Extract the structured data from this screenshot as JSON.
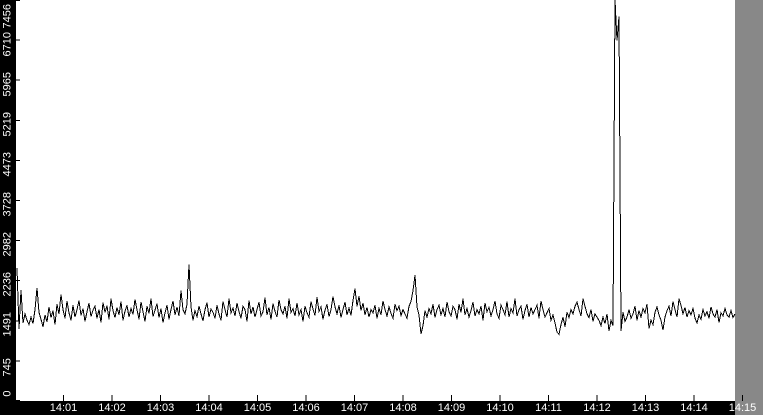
{
  "window": {
    "background_color": "#ffffff",
    "axis_bar_color": "#000000",
    "axis_text_color": "#ffffff"
  },
  "chart_data": {
    "type": "line",
    "title": "",
    "xlabel": "",
    "ylabel": "",
    "grid": false,
    "legend": false,
    "line_color": "#000000",
    "ylim": [
      0,
      7456
    ],
    "y_ticks": [
      7456,
      6710,
      5965,
      5219,
      4473,
      3728,
      2982,
      2236,
      1491,
      745,
      0
    ],
    "x_ticks": [
      "14:01",
      "14:02",
      "14:03",
      "14:04",
      "14:05",
      "14:06",
      "14:07",
      "14:08",
      "14:09",
      "14:10",
      "14:11",
      "14:12",
      "14:13",
      "14:14",
      "14:15"
    ],
    "x_start_time": "14:00:03",
    "x_end_time": "14:14:53",
    "sample_interval_s": 2.5,
    "baseline_mean": 1670,
    "spikes": [
      {
        "time": "14:03:36",
        "value": 2540
      },
      {
        "time": "14:08:16",
        "value": 2340
      },
      {
        "time": "14:12:25",
        "value": 7456
      }
    ],
    "values": [
      2470,
      1340,
      2060,
      1450,
      1620,
      1500,
      1420,
      1560,
      1440,
      1700,
      2100,
      1650,
      1520,
      1380,
      1600,
      1470,
      1750,
      1550,
      1680,
      1420,
      1800,
      1620,
      1980,
      1700,
      1540,
      1860,
      1640,
      1500,
      1780,
      1560,
      1700,
      1870,
      1590,
      1720,
      1480,
      1660,
      1820,
      1570,
      1690,
      1760,
      1540,
      1700,
      1460,
      1830,
      1650,
      1770,
      1520,
      1900,
      1680,
      1550,
      1740,
      1600,
      1850,
      1500,
      1670,
      1780,
      1560,
      1720,
      1610,
      1890,
      1700,
      1520,
      1840,
      1660,
      1480,
      1760,
      1630,
      1900,
      1570,
      1690,
      1810,
      1550,
      1720,
      1460,
      1640,
      1780,
      1520,
      1700,
      1860,
      1600,
      1750,
      1580,
      2050,
      1700,
      1620,
      1800,
      2540,
      1750,
      1500,
      1680,
      1570,
      1760,
      1620,
      1490,
      1700,
      1830,
      1560,
      1710,
      1650,
      1540,
      1780,
      1620,
      1500,
      1850,
      1700,
      1560,
      1900,
      1640,
      1730,
      1580,
      1820,
      1660,
      1540,
      1760,
      1700,
      1480,
      1870,
      1620,
      1750,
      1560,
      1700,
      1840,
      1580,
      1660,
      1920,
      1600,
      1740,
      1520,
      1810,
      1670,
      1560,
      1880,
      1700,
      1620,
      1760,
      1540,
      1900,
      1650,
      1720,
      1580,
      1820,
      1600,
      1700,
      1480,
      1760,
      1640,
      1560,
      1850,
      1710,
      1590,
      1930,
      1670,
      1750,
      1520,
      1690,
      1800,
      1570,
      1700,
      1940,
      1750,
      1620,
      1780,
      1550,
      1700,
      1840,
      1600,
      1730,
      1590,
      1870,
      2090,
      1760,
      1950,
      1680,
      1820,
      1600,
      1740,
      1560,
      1700,
      1640,
      1780,
      1540,
      1720,
      1600,
      1860,
      1700,
      1580,
      1750,
      1630,
      1540,
      1800,
      1680,
      1760,
      1590,
      1700,
      1620,
      1540,
      1760,
      1850,
      2050,
      2340,
      1750,
      1600,
      1250,
      1400,
      1680,
      1560,
      1720,
      1620,
      1800,
      1550,
      1700,
      1780,
      1600,
      1720,
      1560,
      1840,
      1660,
      1580,
      1760,
      1700,
      1520,
      1800,
      1650,
      1900,
      1600,
      1720,
      1560,
      1680,
      1840,
      1580,
      1700,
      1620,
      1760,
      1500,
      1820,
      1660,
      1740,
      1580,
      1700,
      1860,
      1620,
      1540,
      1780,
      1700,
      1600,
      1850,
      1560,
      1720,
      1640,
      1900,
      1580,
      1700,
      1760,
      1520,
      1680,
      1800,
      1560,
      1740,
      1620,
      1700,
      1780,
      1540,
      1860,
      1700,
      1560,
      1640,
      1720,
      1500,
      1600,
      1450,
      1280,
      1240,
      1420,
      1560,
      1380,
      1650,
      1550,
      1700,
      1620,
      1760,
      1840,
      1700,
      1580,
      1900,
      1760,
      1620,
      1550,
      1700,
      1480,
      1620,
      1560,
      1500,
      1400,
      1560,
      1440,
      1620,
      1300,
      1500,
      1400,
      7456,
      6700,
      7150,
      1300,
      1650,
      1480,
      1560,
      1700,
      1540,
      1620,
      1760,
      1500,
      1680,
      1560,
      1720,
      1640,
      1800,
      1350,
      1500,
      1420,
      1650,
      1750,
      1600,
      1500,
      1320,
      1560,
      1680,
      1760,
      1580,
      1850,
      1700,
      1560,
      1900,
      1780,
      1620,
      1740,
      1560,
      1680,
      1600,
      1720,
      1540,
      1450,
      1600,
      1520,
      1700,
      1580,
      1660,
      1540,
      1750,
      1620,
      1560,
      1700,
      1460,
      1640,
      1580,
      1720,
      1600,
      1560,
      1680,
      1550,
      1620
    ]
  }
}
